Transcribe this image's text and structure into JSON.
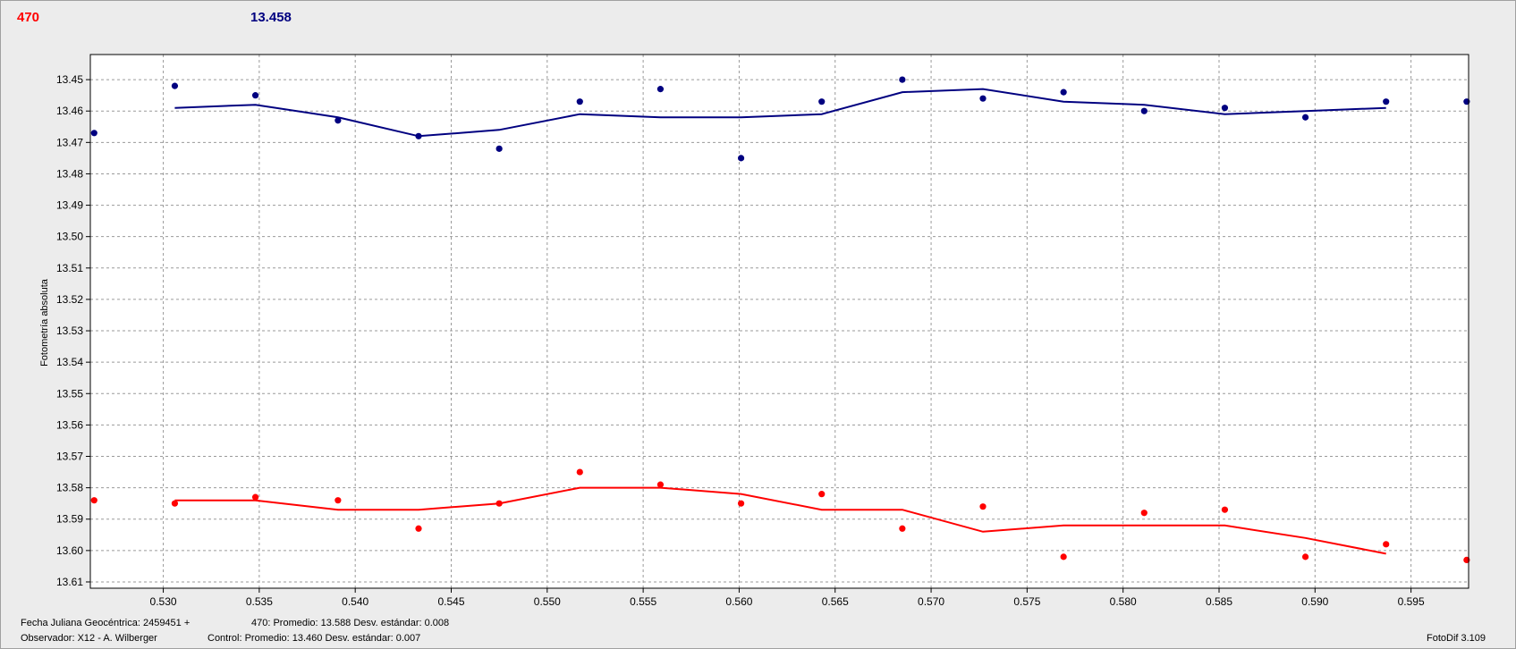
{
  "header": {
    "variable_label": "470",
    "variable_color": "#ff0000",
    "control_value": "13.458",
    "control_color": "#000080"
  },
  "chart_data": {
    "type": "line",
    "title": "",
    "xlabel": "",
    "ylabel": "Fotometría absoluta",
    "xlim": [
      0.5262,
      0.598
    ],
    "ylim": [
      13.612,
      13.442
    ],
    "y_inverted": true,
    "grid": true,
    "x_ticks": [
      "0.530",
      "0.535",
      "0.540",
      "0.545",
      "0.550",
      "0.555",
      "0.560",
      "0.565",
      "0.570",
      "0.575",
      "0.580",
      "0.585",
      "0.590",
      "0.595"
    ],
    "y_ticks": [
      "13.45",
      "13.46",
      "13.47",
      "13.48",
      "13.49",
      "13.50",
      "13.51",
      "13.52",
      "13.53",
      "13.54",
      "13.55",
      "13.56",
      "13.57",
      "13.58",
      "13.59",
      "13.60",
      "13.61"
    ],
    "series": [
      {
        "name": "Control",
        "color": "#000080",
        "points": {
          "x": [
            0.5264,
            0.5306,
            0.5348,
            0.5391,
            0.5433,
            0.5475,
            0.5517,
            0.5559,
            0.5601,
            0.5643,
            0.5685,
            0.5727,
            0.5769,
            0.5811,
            0.5853,
            0.5895,
            0.5937,
            0.5979
          ],
          "y": [
            13.467,
            13.452,
            13.455,
            13.463,
            13.468,
            13.472,
            13.457,
            13.453,
            13.475,
            13.457,
            13.45,
            13.456,
            13.454,
            13.46,
            13.459,
            13.462,
            13.457,
            13.457
          ]
        },
        "smooth": {
          "x": [
            0.5306,
            0.5348,
            0.5391,
            0.5433,
            0.5475,
            0.5517,
            0.5559,
            0.5601,
            0.5643,
            0.5685,
            0.5727,
            0.5769,
            0.5811,
            0.5853,
            0.5895,
            0.5937
          ],
          "y": [
            13.459,
            13.458,
            13.462,
            13.468,
            13.466,
            13.461,
            13.462,
            13.462,
            13.461,
            13.454,
            13.453,
            13.457,
            13.458,
            13.461,
            13.46,
            13.459
          ]
        }
      },
      {
        "name": "470",
        "color": "#ff0000",
        "points": {
          "x": [
            0.5264,
            0.5306,
            0.5348,
            0.5391,
            0.5433,
            0.5475,
            0.5517,
            0.5559,
            0.5601,
            0.5643,
            0.5685,
            0.5727,
            0.5769,
            0.5811,
            0.5853,
            0.5895,
            0.5937,
            0.5979
          ],
          "y": [
            13.584,
            13.585,
            13.583,
            13.584,
            13.593,
            13.585,
            13.575,
            13.579,
            13.585,
            13.582,
            13.593,
            13.586,
            13.602,
            13.588,
            13.587,
            13.602,
            13.598,
            13.603
          ]
        },
        "smooth": {
          "x": [
            0.5306,
            0.5348,
            0.5391,
            0.5433,
            0.5475,
            0.5517,
            0.5559,
            0.5601,
            0.5643,
            0.5685,
            0.5727,
            0.5769,
            0.5811,
            0.5853,
            0.5895,
            0.5937
          ],
          "y": [
            13.584,
            13.584,
            13.587,
            13.587,
            13.585,
            13.58,
            13.58,
            13.582,
            13.587,
            13.587,
            13.594,
            13.592,
            13.592,
            13.592,
            13.596,
            13.601
          ]
        }
      }
    ]
  },
  "footer": {
    "julian_date": "Fecha Juliana Geocéntrica: 2459451 +",
    "observer": "Observador: X12 - A. Wilberger",
    "var_stats": "470: Promedio: 13.588   Desv. estándar: 0.008",
    "control_stats": "Control: Promedio: 13.460   Desv. estándar: 0.007",
    "app_version": "FotoDif 3.109"
  }
}
